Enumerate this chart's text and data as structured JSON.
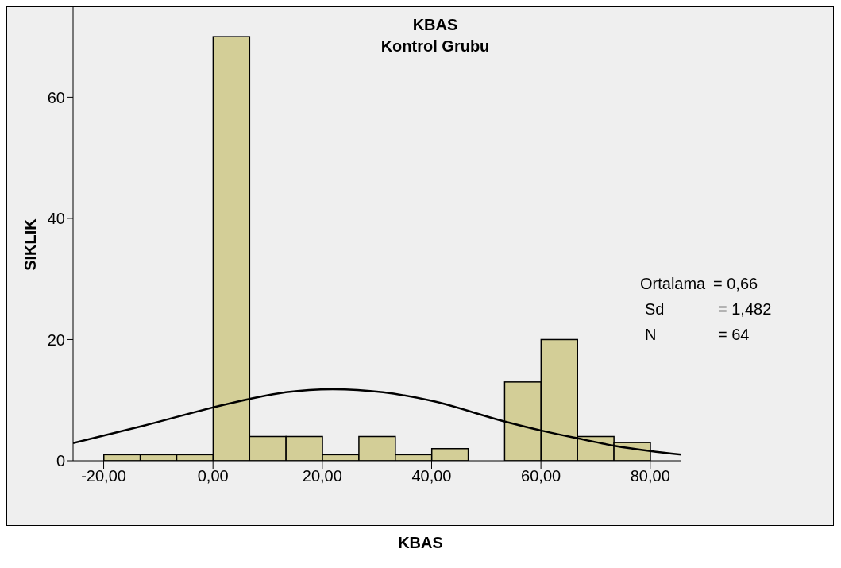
{
  "chart_data": {
    "type": "histogram",
    "title": "KBAS",
    "subtitle": "Kontrol Grubu",
    "xlabel": "KBAS",
    "ylabel": "SIKLIK",
    "bins": [
      -20,
      -13.33,
      -6.67,
      0,
      6.67,
      13.33,
      20,
      26.67,
      33.33,
      40,
      46.67,
      53.33,
      60,
      66.67,
      73.33,
      80
    ],
    "values": [
      1,
      1,
      1,
      70,
      4,
      4,
      1,
      4,
      1,
      2,
      0,
      13,
      20,
      4,
      3
    ],
    "color": "#d3ce97",
    "series": [
      {
        "type": "line",
        "color": "#000000",
        "x": [
          -25.6,
          -12.6,
          0,
          6.7,
          13.3,
          21.9,
          31.1,
          40,
          53.3,
          60,
          66.7,
          73.3,
          80,
          85.7
        ],
        "values": [
          2.9,
          5.8,
          8.8,
          10.2,
          11.3,
          11.8,
          11.3,
          9.9,
          6.5,
          5,
          3.7,
          2.5,
          1.6,
          1
        ]
      }
    ],
    "xlim": [
      -25.6,
      85.7
    ],
    "xticks": [
      {
        "value": -20,
        "label": "-20,00"
      },
      {
        "value": 0,
        "label": "0,00"
      },
      {
        "value": 20,
        "label": "20,00"
      },
      {
        "value": 40,
        "label": "40,00"
      },
      {
        "value": 60,
        "label": "60,00"
      },
      {
        "value": 80,
        "label": "80,00"
      }
    ],
    "ylim": [
      0,
      75
    ],
    "yticks": [
      0,
      20,
      40,
      60
    ],
    "grid": false,
    "marker": "none",
    "line_style": "solid",
    "annotations": [
      "Ortalama = 0,66",
      "Sd = 1,482",
      "N = 64"
    ]
  }
}
